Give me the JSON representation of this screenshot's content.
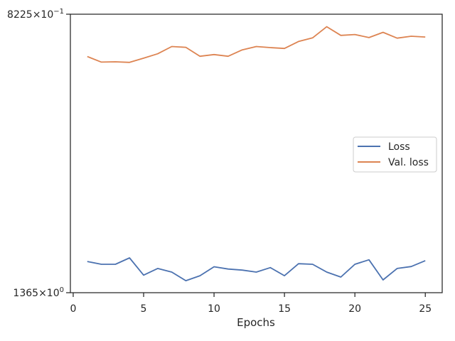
{
  "chart_data": {
    "type": "line",
    "title": "",
    "xlabel": "Epochs",
    "ylabel": "",
    "xlim": [
      -0.2,
      26.2
    ],
    "ylim": [
      0,
      1
    ],
    "y_scale": "log (scaled units; original axis labels shown as tick text)",
    "x_ticks": [
      0,
      5,
      10,
      15,
      20,
      25
    ],
    "x_tick_labels": [
      "0",
      "5",
      "10",
      "15",
      "20",
      "25"
    ],
    "y_tick_labels": {
      "top": {
        "mantissa": "8225",
        "times": "×",
        "base": "10",
        "exp": "−1",
        "value": 1.0
      },
      "bottom": {
        "mantissa": "1365",
        "times": "×",
        "base": "10",
        "exp": "0",
        "value": 0.0
      }
    },
    "legend": {
      "position": "center-right",
      "entries": [
        "Loss",
        "Val. loss"
      ]
    },
    "colors": {
      "Loss": "#4c72b0",
      "Val. loss": "#dd8452",
      "axis": "#262626"
    },
    "grid": false,
    "x": [
      1,
      2,
      3,
      4,
      5,
      6,
      7,
      8,
      9,
      10,
      11,
      12,
      13,
      14,
      15,
      16,
      17,
      18,
      19,
      20,
      21,
      22,
      23,
      24,
      25
    ],
    "series": [
      {
        "name": "Loss",
        "values": [
          0.112,
          0.102,
          0.102,
          0.125,
          0.063,
          0.087,
          0.074,
          0.043,
          0.061,
          0.093,
          0.085,
          0.081,
          0.074,
          0.09,
          0.061,
          0.104,
          0.102,
          0.074,
          0.056,
          0.102,
          0.118,
          0.046,
          0.087,
          0.094,
          0.115
        ]
      },
      {
        "name": "Val. loss",
        "values": [
          0.848,
          0.828,
          0.829,
          0.827,
          0.842,
          0.858,
          0.884,
          0.881,
          0.849,
          0.855,
          0.849,
          0.872,
          0.884,
          0.88,
          0.877,
          0.902,
          0.915,
          0.955,
          0.924,
          0.927,
          0.916,
          0.935,
          0.914,
          0.921,
          0.918
        ]
      }
    ]
  }
}
